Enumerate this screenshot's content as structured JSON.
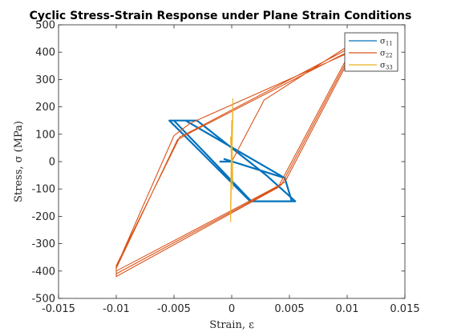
{
  "chart_data": {
    "type": "line",
    "title": "Cyclic Stress-Strain Response under Plane Strain Conditions",
    "xlabel": "Strain, ε",
    "ylabel": "Stress, σ (MPa)",
    "xlim": [
      -0.015,
      0.015
    ],
    "ylim": [
      -500,
      500
    ],
    "x_ticks": [
      -0.015,
      -0.01,
      -0.005,
      0,
      0.005,
      0.01,
      0.015
    ],
    "x_tick_labels": [
      "-0.015",
      "-0.01",
      "-0.005",
      "0",
      "0.005",
      "0.01",
      "0.015"
    ],
    "y_ticks": [
      -500,
      -400,
      -300,
      -200,
      -100,
      0,
      100,
      200,
      300,
      400,
      500
    ],
    "y_tick_labels": [
      "-500",
      "-400",
      "-300",
      "-200",
      "-100",
      "0",
      "100",
      "200",
      "300",
      "400",
      "500"
    ],
    "grid": false,
    "legend_position": "top-right",
    "series": [
      {
        "name": "σ11",
        "legend_main": "σ",
        "legend_sub": "11",
        "color": "#0072BD",
        "segments": [
          {
            "x": [
              0,
              -0.0007,
              -0.001,
              0.0
            ],
            "y": [
              0,
              0,
              0,
              0
            ]
          },
          {
            "x": [
              -0.0007,
              0.0046,
              0.0052,
              0.0016,
              -0.0054,
              -0.004,
              0.0046,
              0.0052,
              0.0016,
              -0.0054,
              -0.004,
              0.0046,
              0.0052,
              0.0016,
              -0.0054,
              -0.003,
              0.003,
              0.0055,
              0.0017,
              -0.005
            ],
            "y": [
              10,
              -60,
              -145,
              -145,
              150,
              150,
              -60,
              -145,
              -145,
              150,
              150,
              -60,
              -145,
              -145,
              150,
              150,
              -50,
              -145,
              -145,
              150
            ]
          }
        ]
      },
      {
        "name": "σ22",
        "legend_main": "σ",
        "legend_sub": "22",
        "color": "#D95319",
        "segments": [
          {
            "x": [
              0,
              0.0025,
              0.0028,
              0.01,
              0.01,
              0.004,
              0.0027,
              -0.01,
              -0.01,
              -0.0045,
              -0.0031,
              0.01,
              0.01,
              0.0043,
              0.003,
              -0.01,
              -0.01,
              -0.0047,
              -0.0034,
              0.01,
              0.01,
              0.0046,
              0.0033,
              -0.01,
              -0.01,
              -0.005,
              -0.0036,
              0.01
            ],
            "y": [
              0,
              200,
              225,
              420,
              380,
              -95,
              -125,
              -420,
              -380,
              90,
              120,
              410,
              370,
              -85,
              -115,
              -410,
              -390,
              80,
              110,
              400,
              360,
              -75,
              -105,
              -400,
              -385,
              95,
              140,
              395
            ]
          }
        ]
      },
      {
        "name": "σ33",
        "legend_main": "σ",
        "legend_sub": "33",
        "color": "#EDB120",
        "segments": [
          {
            "x": [
              0,
              0.0001,
              -0.0001,
              0.0001,
              -0.0001,
              0.0001,
              -0.0001,
              0.0,
              0.0001,
              -0.0001,
              0.0
            ],
            "y": [
              0,
              230,
              -220,
              200,
              -200,
              180,
              -180,
              150,
              -100,
              90,
              0
            ]
          }
        ]
      }
    ]
  }
}
